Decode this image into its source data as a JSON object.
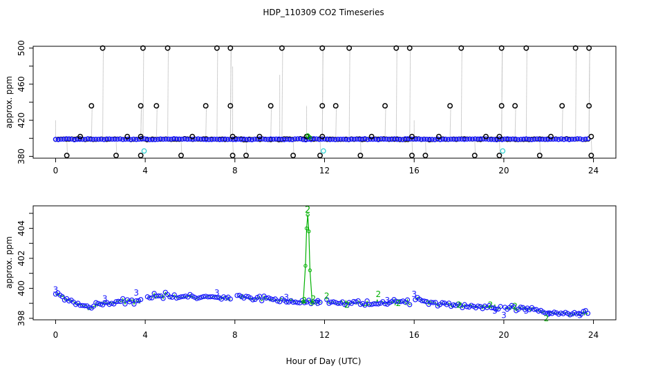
{
  "title": "HDP_110309  CO2 Timeseries",
  "xlabel": "Hour of Day (UTC)",
  "colors": {
    "raw_points": "#000000",
    "raw_lines": "#a0a0a0",
    "blue": "#1a1aff",
    "green": "#00b000",
    "cyan": "#30d0d0"
  },
  "chart_data": [
    {
      "type": "scatter",
      "panel": "top",
      "title": "HDP_110309  CO2 Timeseries",
      "xlabel": "",
      "ylabel": "approx. ppm",
      "xlim": [
        -1,
        25
      ],
      "ylim": [
        378,
        502
      ],
      "xticks": [
        0,
        4,
        8,
        12,
        16,
        20,
        24
      ],
      "yticks": [
        380,
        420,
        460,
        500
      ],
      "grid": false,
      "baseline_ppm": 399,
      "spikes_500": [
        2.1,
        3.9,
        5.0,
        7.2,
        7.8,
        10.1,
        11.9,
        13.1,
        15.2,
        15.8,
        18.1,
        19.9,
        21.0,
        23.2,
        23.8
      ],
      "spikes_436": [
        1.6,
        3.8,
        4.5,
        6.7,
        7.8,
        9.6,
        11.9,
        12.5,
        14.7,
        17.6,
        19.9,
        20.5,
        22.6,
        23.8
      ],
      "dips_381": [
        0.5,
        2.7,
        3.8,
        5.6,
        7.9,
        8.5,
        10.6,
        11.8,
        13.6,
        15.9,
        16.5,
        18.7,
        19.8,
        21.6,
        23.9
      ],
      "flags_402": [
        1.1,
        3.2,
        3.8,
        6.1,
        7.9,
        9.1,
        11.2,
        11.9,
        14.1,
        15.9,
        17.1,
        19.2,
        19.8,
        22.1,
        23.9
      ],
      "cyan_points": [
        [
          3.95,
          386
        ],
        [
          11.95,
          386
        ],
        [
          19.95,
          386
        ]
      ],
      "green_labels": [
        [
          11.25,
          403
        ]
      ]
    },
    {
      "type": "line",
      "panel": "bottom",
      "xlabel": "Hour of Day (UTC)",
      "ylabel": "approx. ppm",
      "xlim": [
        -1,
        25
      ],
      "ylim": [
        397.9,
        405.5
      ],
      "xticks": [
        0,
        4,
        8,
        12,
        16,
        20,
        24
      ],
      "yticks": [
        398,
        400,
        402,
        404
      ],
      "grid": false,
      "gaps": [
        [
          3.8,
          4.05
        ],
        [
          7.8,
          8.05
        ],
        [
          11.9,
          12.1
        ],
        [
          15.9,
          16.05
        ],
        [
          19.9,
          20.05
        ]
      ],
      "profile": {
        "x": [
          0,
          0.5,
          1,
          1.5,
          2,
          3,
          3.8,
          4,
          5,
          6,
          7,
          7.8,
          8,
          9,
          10,
          11,
          11.9,
          12,
          13,
          14,
          15,
          15.9,
          16,
          17,
          18,
          19,
          19.9,
          20,
          21,
          22,
          23,
          23.8
        ],
        "y": [
          399.6,
          399.3,
          398.9,
          398.7,
          399.0,
          399.1,
          399.2,
          399.5,
          399.5,
          399.4,
          399.4,
          399.3,
          399.4,
          399.3,
          399.2,
          399.1,
          399.0,
          399.1,
          399.0,
          399.0,
          399.1,
          399.0,
          399.3,
          399.0,
          398.9,
          398.8,
          398.6,
          398.7,
          398.6,
          398.4,
          398.3,
          398.4
        ]
      },
      "spike": {
        "x": [
          11.05,
          11.15,
          11.2,
          11.25,
          11.3,
          11.35,
          11.45
        ],
        "y": [
          399.1,
          401.5,
          404.0,
          404.9,
          403.8,
          401.2,
          399.0
        ],
        "label": "2"
      },
      "labels_3": [
        [
          0.0,
          399.9
        ],
        [
          2.2,
          399.3
        ],
        [
          3.6,
          399.7
        ],
        [
          7.2,
          399.7
        ],
        [
          10.3,
          399.4
        ],
        [
          11.7,
          399.0
        ],
        [
          14.8,
          399.2
        ],
        [
          16.0,
          399.6
        ],
        [
          19.6,
          398.5
        ],
        [
          20.0,
          398.2
        ],
        [
          21.0,
          398.5
        ],
        [
          22.0,
          398.3
        ],
        [
          23.4,
          398.2
        ]
      ],
      "labels_2": [
        [
          11.1,
          399.2
        ],
        [
          11.5,
          399.3
        ],
        [
          12.1,
          399.5
        ],
        [
          13.0,
          398.9
        ],
        [
          14.4,
          399.6
        ],
        [
          15.3,
          399.0
        ],
        [
          18.0,
          398.9
        ],
        [
          19.4,
          398.9
        ],
        [
          20.5,
          398.8
        ],
        [
          21.9,
          398.0
        ]
      ]
    }
  ]
}
